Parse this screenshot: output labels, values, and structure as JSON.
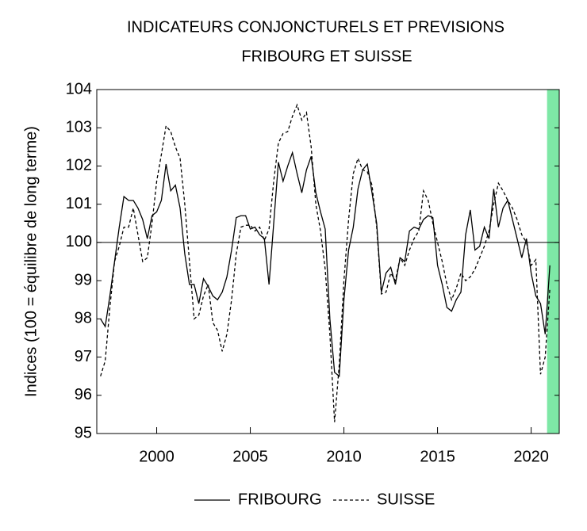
{
  "chart_data": {
    "type": "line",
    "title": "INDICATEURS CONJONCTURELS ET PREVISIONS",
    "subtitle": "FRIBOURG ET SUISSE",
    "ylabel": "Indices (100 = équilibre de long terme)",
    "x": [
      1997,
      1997.25,
      1997.5,
      1997.75,
      1998,
      1998.25,
      1998.5,
      1998.75,
      1999,
      1999.25,
      1999.5,
      1999.75,
      2000,
      2000.25,
      2000.5,
      2000.75,
      2001,
      2001.25,
      2001.5,
      2001.75,
      2002,
      2002.25,
      2002.5,
      2002.75,
      2003,
      2003.25,
      2003.5,
      2003.75,
      2004,
      2004.25,
      2004.5,
      2004.75,
      2005,
      2005.25,
      2005.5,
      2005.75,
      2006,
      2006.25,
      2006.5,
      2006.75,
      2007,
      2007.25,
      2007.5,
      2007.75,
      2008,
      2008.25,
      2008.5,
      2008.75,
      2009,
      2009.25,
      2009.5,
      2009.75,
      2010,
      2010.25,
      2010.5,
      2010.75,
      2011,
      2011.25,
      2011.5,
      2011.75,
      2012,
      2012.25,
      2012.5,
      2012.75,
      2013,
      2013.25,
      2013.5,
      2013.75,
      2014,
      2014.25,
      2014.5,
      2014.75,
      2015,
      2015.25,
      2015.5,
      2015.75,
      2016,
      2016.25,
      2016.5,
      2016.75,
      2017,
      2017.25,
      2017.5,
      2017.75,
      2018,
      2018.25,
      2018.5,
      2018.75,
      2019,
      2019.25,
      2019.5,
      2019.75,
      2020,
      2020.25,
      2020.5,
      2020.75,
      2021
    ],
    "series": [
      {
        "name": "FRIBOURG",
        "color": "#000000",
        "dash": "none",
        "values": [
          98.0,
          97.8,
          98.6,
          99.5,
          100.4,
          101.2,
          101.1,
          101.1,
          100.9,
          100.6,
          100.1,
          100.7,
          100.8,
          101.1,
          102.05,
          101.35,
          101.5,
          100.9,
          99.7,
          98.9,
          98.9,
          98.4,
          99.05,
          98.85,
          98.6,
          98.5,
          98.7,
          99.1,
          99.8,
          100.65,
          100.7,
          100.7,
          100.35,
          100.4,
          100.2,
          100.1,
          98.9,
          100.5,
          102.1,
          101.6,
          102.0,
          102.35,
          101.8,
          101.3,
          101.9,
          102.25,
          101.3,
          100.8,
          100.35,
          98.0,
          96.6,
          96.5,
          98.5,
          99.8,
          100.4,
          101.4,
          101.9,
          102.05,
          101.3,
          100.5,
          98.7,
          99.2,
          99.35,
          98.9,
          99.6,
          99.5,
          100.3,
          100.4,
          100.35,
          100.6,
          100.7,
          100.65,
          99.4,
          98.9,
          98.3,
          98.2,
          98.5,
          98.7,
          100.2,
          100.85,
          99.8,
          99.9,
          100.4,
          100.1,
          101.4,
          100.4,
          100.9,
          101.1,
          100.6,
          100.1,
          99.6,
          100.1,
          99.2,
          98.6,
          98.4,
          97.6,
          99.4
        ]
      },
      {
        "name": "SUISSE",
        "color": "#000000",
        "dash": "4,3",
        "values": [
          96.5,
          96.9,
          98.3,
          99.5,
          99.9,
          100.4,
          100.4,
          100.9,
          100.2,
          99.5,
          99.6,
          100.5,
          101.6,
          102.3,
          103.05,
          102.9,
          102.5,
          102.2,
          101.0,
          99.5,
          98.0,
          98.1,
          98.6,
          98.9,
          97.9,
          97.7,
          97.15,
          97.6,
          98.5,
          99.7,
          100.4,
          100.45,
          100.45,
          100.3,
          100.4,
          100.05,
          100.35,
          101.6,
          102.6,
          102.85,
          102.9,
          103.3,
          103.6,
          103.2,
          103.4,
          102.5,
          101.0,
          100.3,
          99.3,
          97.6,
          95.3,
          96.8,
          99.0,
          100.6,
          101.8,
          102.2,
          101.9,
          101.85,
          101.5,
          100.4,
          98.65,
          98.7,
          99.2,
          99.0,
          99.6,
          99.4,
          99.8,
          100.1,
          100.3,
          101.35,
          101.1,
          100.5,
          100.0,
          99.5,
          98.9,
          98.5,
          98.8,
          99.2,
          99.0,
          99.1,
          99.3,
          99.6,
          99.9,
          100.3,
          101.0,
          101.55,
          101.35,
          101.1,
          100.9,
          100.6,
          100.2,
          100.0,
          99.4,
          99.55,
          96.55,
          97.0,
          98.8
        ]
      }
    ],
    "xlim": [
      1996.8,
      2021.5
    ],
    "xticks": [
      2000,
      2005,
      2010,
      2015,
      2020
    ],
    "ylim": [
      95,
      104
    ],
    "yticks": [
      95,
      96,
      97,
      98,
      99,
      100,
      101,
      102,
      103,
      104
    ],
    "reference_line": 100,
    "forecast_band": {
      "range": [
        2020.85,
        2021.5
      ],
      "color": "#7ee8a6"
    },
    "legend": "bottom"
  }
}
